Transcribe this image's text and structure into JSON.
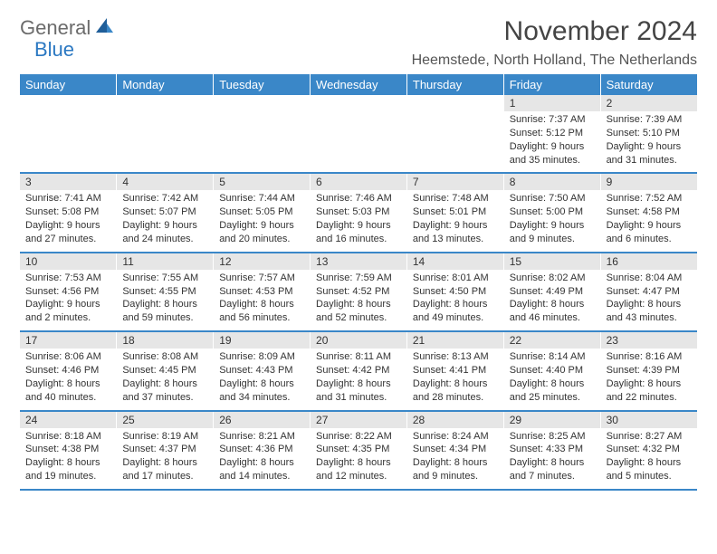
{
  "brand": {
    "word1": "General",
    "word2": "Blue"
  },
  "title": "November 2024",
  "location": "Heemstede, North Holland, The Netherlands",
  "colors": {
    "header_bg": "#3a87c8",
    "header_text": "#ffffff",
    "daynum_bg": "#e6e6e6",
    "rule": "#3a87c8",
    "accent": "#2b78c2"
  },
  "days_of_week": [
    "Sunday",
    "Monday",
    "Tuesday",
    "Wednesday",
    "Thursday",
    "Friday",
    "Saturday"
  ],
  "weeks": [
    [
      null,
      null,
      null,
      null,
      null,
      {
        "n": "1",
        "sr": "Sunrise: 7:37 AM",
        "ss": "Sunset: 5:12 PM",
        "dl": "Daylight: 9 hours and 35 minutes."
      },
      {
        "n": "2",
        "sr": "Sunrise: 7:39 AM",
        "ss": "Sunset: 5:10 PM",
        "dl": "Daylight: 9 hours and 31 minutes."
      }
    ],
    [
      {
        "n": "3",
        "sr": "Sunrise: 7:41 AM",
        "ss": "Sunset: 5:08 PM",
        "dl": "Daylight: 9 hours and 27 minutes."
      },
      {
        "n": "4",
        "sr": "Sunrise: 7:42 AM",
        "ss": "Sunset: 5:07 PM",
        "dl": "Daylight: 9 hours and 24 minutes."
      },
      {
        "n": "5",
        "sr": "Sunrise: 7:44 AM",
        "ss": "Sunset: 5:05 PM",
        "dl": "Daylight: 9 hours and 20 minutes."
      },
      {
        "n": "6",
        "sr": "Sunrise: 7:46 AM",
        "ss": "Sunset: 5:03 PM",
        "dl": "Daylight: 9 hours and 16 minutes."
      },
      {
        "n": "7",
        "sr": "Sunrise: 7:48 AM",
        "ss": "Sunset: 5:01 PM",
        "dl": "Daylight: 9 hours and 13 minutes."
      },
      {
        "n": "8",
        "sr": "Sunrise: 7:50 AM",
        "ss": "Sunset: 5:00 PM",
        "dl": "Daylight: 9 hours and 9 minutes."
      },
      {
        "n": "9",
        "sr": "Sunrise: 7:52 AM",
        "ss": "Sunset: 4:58 PM",
        "dl": "Daylight: 9 hours and 6 minutes."
      }
    ],
    [
      {
        "n": "10",
        "sr": "Sunrise: 7:53 AM",
        "ss": "Sunset: 4:56 PM",
        "dl": "Daylight: 9 hours and 2 minutes."
      },
      {
        "n": "11",
        "sr": "Sunrise: 7:55 AM",
        "ss": "Sunset: 4:55 PM",
        "dl": "Daylight: 8 hours and 59 minutes."
      },
      {
        "n": "12",
        "sr": "Sunrise: 7:57 AM",
        "ss": "Sunset: 4:53 PM",
        "dl": "Daylight: 8 hours and 56 minutes."
      },
      {
        "n": "13",
        "sr": "Sunrise: 7:59 AM",
        "ss": "Sunset: 4:52 PM",
        "dl": "Daylight: 8 hours and 52 minutes."
      },
      {
        "n": "14",
        "sr": "Sunrise: 8:01 AM",
        "ss": "Sunset: 4:50 PM",
        "dl": "Daylight: 8 hours and 49 minutes."
      },
      {
        "n": "15",
        "sr": "Sunrise: 8:02 AM",
        "ss": "Sunset: 4:49 PM",
        "dl": "Daylight: 8 hours and 46 minutes."
      },
      {
        "n": "16",
        "sr": "Sunrise: 8:04 AM",
        "ss": "Sunset: 4:47 PM",
        "dl": "Daylight: 8 hours and 43 minutes."
      }
    ],
    [
      {
        "n": "17",
        "sr": "Sunrise: 8:06 AM",
        "ss": "Sunset: 4:46 PM",
        "dl": "Daylight: 8 hours and 40 minutes."
      },
      {
        "n": "18",
        "sr": "Sunrise: 8:08 AM",
        "ss": "Sunset: 4:45 PM",
        "dl": "Daylight: 8 hours and 37 minutes."
      },
      {
        "n": "19",
        "sr": "Sunrise: 8:09 AM",
        "ss": "Sunset: 4:43 PM",
        "dl": "Daylight: 8 hours and 34 minutes."
      },
      {
        "n": "20",
        "sr": "Sunrise: 8:11 AM",
        "ss": "Sunset: 4:42 PM",
        "dl": "Daylight: 8 hours and 31 minutes."
      },
      {
        "n": "21",
        "sr": "Sunrise: 8:13 AM",
        "ss": "Sunset: 4:41 PM",
        "dl": "Daylight: 8 hours and 28 minutes."
      },
      {
        "n": "22",
        "sr": "Sunrise: 8:14 AM",
        "ss": "Sunset: 4:40 PM",
        "dl": "Daylight: 8 hours and 25 minutes."
      },
      {
        "n": "23",
        "sr": "Sunrise: 8:16 AM",
        "ss": "Sunset: 4:39 PM",
        "dl": "Daylight: 8 hours and 22 minutes."
      }
    ],
    [
      {
        "n": "24",
        "sr": "Sunrise: 8:18 AM",
        "ss": "Sunset: 4:38 PM",
        "dl": "Daylight: 8 hours and 19 minutes."
      },
      {
        "n": "25",
        "sr": "Sunrise: 8:19 AM",
        "ss": "Sunset: 4:37 PM",
        "dl": "Daylight: 8 hours and 17 minutes."
      },
      {
        "n": "26",
        "sr": "Sunrise: 8:21 AM",
        "ss": "Sunset: 4:36 PM",
        "dl": "Daylight: 8 hours and 14 minutes."
      },
      {
        "n": "27",
        "sr": "Sunrise: 8:22 AM",
        "ss": "Sunset: 4:35 PM",
        "dl": "Daylight: 8 hours and 12 minutes."
      },
      {
        "n": "28",
        "sr": "Sunrise: 8:24 AM",
        "ss": "Sunset: 4:34 PM",
        "dl": "Daylight: 8 hours and 9 minutes."
      },
      {
        "n": "29",
        "sr": "Sunrise: 8:25 AM",
        "ss": "Sunset: 4:33 PM",
        "dl": "Daylight: 8 hours and 7 minutes."
      },
      {
        "n": "30",
        "sr": "Sunrise: 8:27 AM",
        "ss": "Sunset: 4:32 PM",
        "dl": "Daylight: 8 hours and 5 minutes."
      }
    ]
  ]
}
